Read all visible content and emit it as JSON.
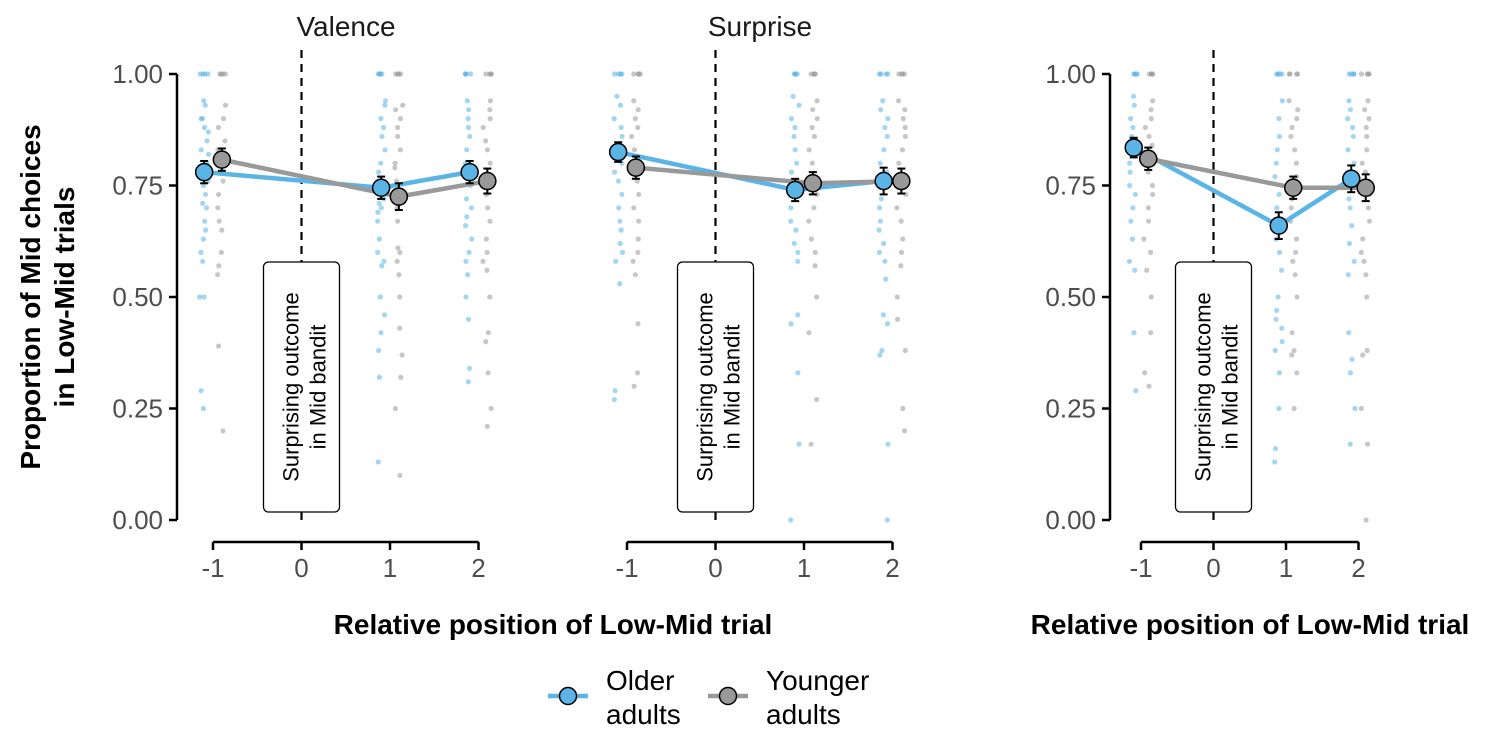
{
  "chart_data": {
    "type": "scatter",
    "ylabel": [
      "Proportion of Mid choices",
      "in Low-Mid trials"
    ],
    "xlabel": "Relative position of Low-Mid trial",
    "yticks": [
      "0.00",
      "0.25",
      "0.50",
      "0.75",
      "1.00"
    ],
    "xticks": [
      "-1",
      "0",
      "1",
      "2"
    ],
    "ylim": [
      0,
      1
    ],
    "xlim": [
      -1.4,
      2.4
    ],
    "annotation": [
      "Surprising outcome",
      "in Mid bandit"
    ],
    "grid": false,
    "legend_position": "bottom",
    "series": [
      {
        "name": "Older adults",
        "color": "#5AB4E5"
      },
      {
        "name": "Younger adults",
        "color": "#999999"
      }
    ],
    "legend_lines": [
      [
        "Older",
        "adults"
      ],
      [
        "Younger",
        "adults"
      ]
    ],
    "panels": [
      {
        "title": "Valence",
        "means": {
          "x": [
            -1,
            1,
            2
          ],
          "older": [
            0.78,
            0.745,
            0.78
          ],
          "older_err": [
            0.025,
            0.025,
            0.025
          ],
          "younger": [
            0.808,
            0.725,
            0.76
          ],
          "younger_err": [
            0.025,
            0.03,
            0.028
          ]
        },
        "raw": {
          "older": [
            [
              1,
              1,
              1,
              1,
              0.94,
              0.93,
              0.9,
              0.9,
              0.88,
              0.87,
              0.85,
              0.83,
              0.82,
              0.8,
              0.78,
              0.76,
              0.75,
              0.73,
              0.71,
              0.7,
              0.67,
              0.65,
              0.63,
              0.6,
              0.58,
              0.5,
              0.5,
              0.29,
              0.25
            ],
            [
              1,
              1,
              1,
              1,
              0.94,
              0.93,
              0.9,
              0.88,
              0.86,
              0.83,
              0.8,
              0.78,
              0.75,
              0.72,
              0.71,
              0.7,
              0.69,
              0.67,
              0.63,
              0.6,
              0.58,
              0.57,
              0.5,
              0.46,
              0.42,
              0.38,
              0.32,
              0.13
            ],
            [
              1,
              1,
              1,
              1,
              0.94,
              0.92,
              0.9,
              0.88,
              0.86,
              0.83,
              0.8,
              0.78,
              0.75,
              0.72,
              0.7,
              0.68,
              0.66,
              0.63,
              0.6,
              0.58,
              0.55,
              0.5,
              0.45,
              0.34,
              0.31
            ]
          ],
          "younger": [
            [
              1,
              1,
              1,
              1,
              0.93,
              0.9,
              0.88,
              0.85,
              0.83,
              0.82,
              0.8,
              0.76,
              0.73,
              0.7,
              0.67,
              0.65,
              0.6,
              0.57,
              0.55,
              0.39,
              0.2
            ],
            [
              1,
              1,
              1,
              1,
              0.93,
              0.92,
              0.9,
              0.88,
              0.86,
              0.83,
              0.8,
              0.79,
              0.76,
              0.73,
              0.7,
              0.67,
              0.61,
              0.6,
              0.58,
              0.55,
              0.5,
              0.43,
              0.37,
              0.32,
              0.25,
              0.1
            ],
            [
              1,
              1,
              1,
              1,
              0.94,
              0.92,
              0.9,
              0.88,
              0.85,
              0.83,
              0.8,
              0.76,
              0.73,
              0.7,
              0.67,
              0.63,
              0.6,
              0.58,
              0.56,
              0.5,
              0.42,
              0.4,
              0.33,
              0.25,
              0.21
            ]
          ]
        }
      },
      {
        "title": "Surprise",
        "means": {
          "x": [
            -1,
            1,
            2
          ],
          "older": [
            0.825,
            0.74,
            0.76
          ],
          "older_err": [
            0.022,
            0.025,
            0.03
          ],
          "younger": [
            0.79,
            0.755,
            0.76
          ],
          "younger_err": [
            0.025,
            0.025,
            0.028
          ]
        },
        "raw": {
          "older": [
            [
              1,
              1,
              1,
              1,
              0.95,
              0.93,
              0.9,
              0.88,
              0.86,
              0.83,
              0.8,
              0.78,
              0.76,
              0.73,
              0.7,
              0.67,
              0.65,
              0.62,
              0.6,
              0.58,
              0.53,
              0.29,
              0.27
            ],
            [
              1,
              1,
              1,
              1,
              0.95,
              0.93,
              0.9,
              0.88,
              0.86,
              0.83,
              0.8,
              0.78,
              0.76,
              0.73,
              0.7,
              0.67,
              0.65,
              0.62,
              0.6,
              0.58,
              0.46,
              0.44,
              0.33,
              0.17,
              0
            ],
            [
              1,
              1,
              1,
              1,
              0.94,
              0.92,
              0.9,
              0.88,
              0.86,
              0.83,
              0.8,
              0.78,
              0.75,
              0.72,
              0.7,
              0.67,
              0.65,
              0.62,
              0.6,
              0.58,
              0.54,
              0.46,
              0.44,
              0.38,
              0.37,
              0.17,
              0
            ]
          ],
          "younger": [
            [
              1,
              1,
              1,
              1,
              0.94,
              0.92,
              0.9,
              0.88,
              0.86,
              0.83,
              0.8,
              0.76,
              0.73,
              0.7,
              0.67,
              0.63,
              0.6,
              0.58,
              0.55,
              0.44,
              0.33,
              0.3
            ],
            [
              1,
              1,
              1,
              1,
              0.94,
              0.92,
              0.9,
              0.88,
              0.86,
              0.83,
              0.8,
              0.77,
              0.75,
              0.73,
              0.7,
              0.67,
              0.63,
              0.6,
              0.57,
              0.5,
              0.42,
              0.27,
              0.17
            ],
            [
              1,
              1,
              1,
              1,
              0.94,
              0.92,
              0.9,
              0.88,
              0.86,
              0.83,
              0.8,
              0.77,
              0.75,
              0.73,
              0.7,
              0.67,
              0.63,
              0.6,
              0.57,
              0.5,
              0.45,
              0.38,
              0.25,
              0.2
            ]
          ]
        }
      },
      {
        "title": "",
        "means": {
          "x": [
            -1,
            1,
            2
          ],
          "older": [
            0.835,
            0.66,
            0.765
          ],
          "older_err": [
            0.022,
            0.03,
            0.03
          ],
          "younger": [
            0.81,
            0.745,
            0.745
          ],
          "younger_err": [
            0.025,
            0.025,
            0.03
          ]
        },
        "raw": {
          "older": [
            [
              1,
              1,
              1,
              1,
              0.95,
              0.93,
              0.9,
              0.88,
              0.86,
              0.84,
              0.82,
              0.8,
              0.78,
              0.75,
              0.73,
              0.7,
              0.67,
              0.63,
              0.58,
              0.56,
              0.42,
              0.29
            ],
            [
              1,
              1,
              1,
              1,
              0.94,
              0.9,
              0.86,
              0.83,
              0.8,
              0.77,
              0.73,
              0.7,
              0.67,
              0.63,
              0.6,
              0.56,
              0.5,
              0.47,
              0.45,
              0.43,
              0.4,
              0.38,
              0.33,
              0.25,
              0.16,
              0.13
            ],
            [
              1,
              1,
              1,
              1,
              0.94,
              0.92,
              0.9,
              0.88,
              0.86,
              0.83,
              0.8,
              0.77,
              0.75,
              0.72,
              0.7,
              0.66,
              0.62,
              0.58,
              0.55,
              0.42,
              0.36,
              0.33,
              0.25,
              0.17
            ]
          ],
          "younger": [
            [
              1,
              1,
              1,
              1,
              0.94,
              0.92,
              0.9,
              0.88,
              0.86,
              0.84,
              0.82,
              0.8,
              0.78,
              0.75,
              0.73,
              0.7,
              0.67,
              0.63,
              0.6,
              0.56,
              0.5,
              0.42,
              0.33,
              0.3
            ],
            [
              1,
              1,
              1,
              1,
              0.94,
              0.92,
              0.9,
              0.88,
              0.86,
              0.83,
              0.8,
              0.77,
              0.75,
              0.72,
              0.7,
              0.67,
              0.63,
              0.6,
              0.58,
              0.55,
              0.5,
              0.42,
              0.38,
              0.37,
              0.33,
              0.25
            ],
            [
              1,
              1,
              1,
              1,
              0.94,
              0.92,
              0.9,
              0.88,
              0.86,
              0.83,
              0.8,
              0.78,
              0.75,
              0.73,
              0.7,
              0.67,
              0.63,
              0.6,
              0.58,
              0.55,
              0.5,
              0.38,
              0.37,
              0.25,
              0.17,
              0
            ]
          ]
        }
      }
    ]
  }
}
